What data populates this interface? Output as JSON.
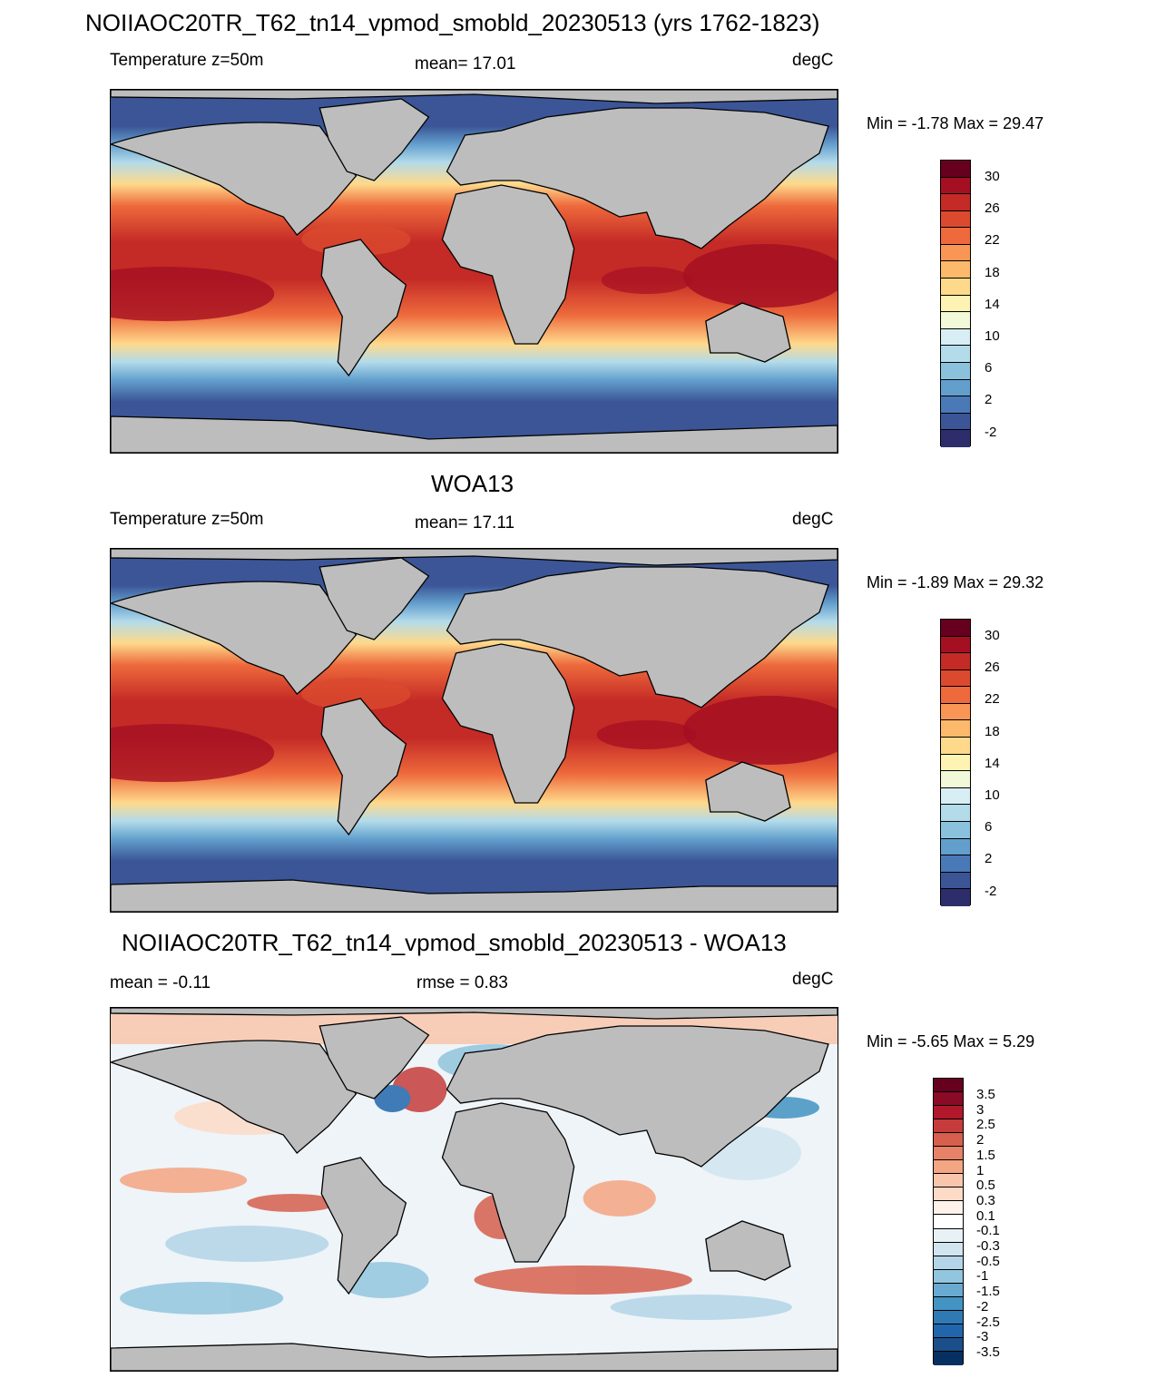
{
  "panel1": {
    "title": "NOIIAOC20TR_T62_tn14_vpmod_smobld_20230513 (yrs 1762-1823)",
    "left_label": "Temperature z=50m",
    "mean_label": "mean=  17.01",
    "units": "degC",
    "minmax": "Min =  -1.78 Max =  29.47"
  },
  "panel2": {
    "title": "WOA13",
    "left_label": "Temperature z=50m",
    "mean_label": "mean=  17.11",
    "units": "degC",
    "minmax": "Min =  -1.89 Max =  29.32"
  },
  "panel3": {
    "title": "NOIIAOC20TR_T62_tn14_vpmod_smobld_20230513 - WOA13",
    "left_label": "mean =  -0.11",
    "mean_label": "rmse =   0.83",
    "units": "degC",
    "minmax": "Min =  -5.65 Max =   5.29"
  },
  "temp_colorbar": {
    "labels": [
      "30",
      "26",
      "22",
      "18",
      "14",
      "10",
      "6",
      "2",
      "-2"
    ],
    "colors": [
      "#67001f",
      "#a50f22",
      "#c42a26",
      "#db4a2e",
      "#ee6a3c",
      "#f99656",
      "#fcb96b",
      "#fed98b",
      "#fef3b2",
      "#f1f9d8",
      "#d7eef4",
      "#b3dbea",
      "#8ac2dd",
      "#639fcd",
      "#4a79b7",
      "#3b5597",
      "#2d2d6b"
    ]
  },
  "diff_colorbar": {
    "labels": [
      "3.5",
      "3",
      "2.5",
      "2",
      "1.5",
      "1",
      "0.5",
      "0.3",
      "0.1",
      "-0.1",
      "-0.3",
      "-0.5",
      "-1",
      "-1.5",
      "-2",
      "-2.5",
      "-3",
      "-3.5"
    ],
    "colors": [
      "#67001f",
      "#8b0a25",
      "#b2182b",
      "#c63c3c",
      "#d6604d",
      "#e58267",
      "#f4a582",
      "#f9c6ac",
      "#fddbc7",
      "#fef2ea",
      "#ffffff",
      "#e7f1f6",
      "#d1e5f0",
      "#b4d5e7",
      "#92c5de",
      "#6aa9d0",
      "#4393c3",
      "#2f79b5",
      "#2166ac",
      "#1a4f8a",
      "#053061"
    ]
  },
  "colors": {
    "land": "#bdbdbd",
    "coast": "#000000"
  }
}
